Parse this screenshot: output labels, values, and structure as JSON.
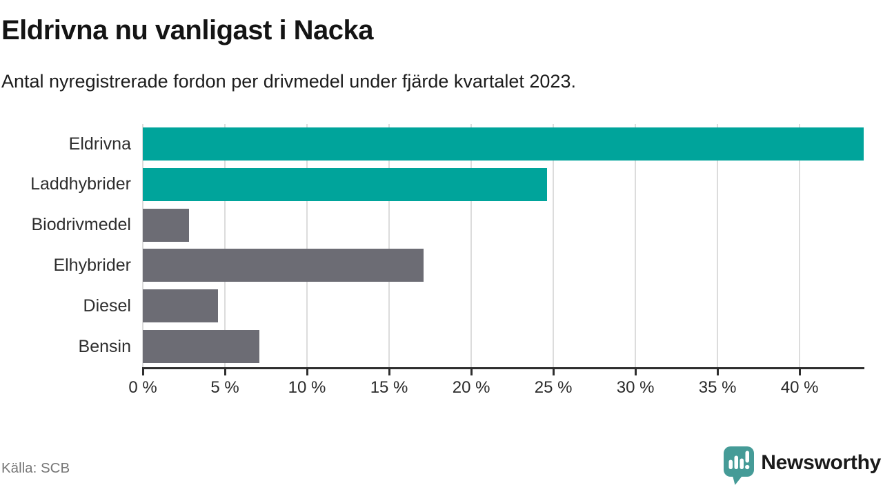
{
  "header": {
    "title": "Eldrivna nu vanligast i Nacka",
    "subtitle": "Antal nyregistrerade fordon per drivmedel under fjärde kvartalet 2023."
  },
  "chart_data": {
    "type": "bar",
    "orientation": "horizontal",
    "title": "Eldrivna nu vanligast i Nacka",
    "xlabel": "",
    "ylabel": "",
    "unit": "%",
    "categories": [
      "Eldrivna",
      "Laddhybrider",
      "Biodrivmedel",
      "Elhybrider",
      "Diesel",
      "Bensin"
    ],
    "values": [
      43.9,
      24.6,
      2.8,
      17.1,
      4.6,
      7.1
    ],
    "bar_colors": [
      "#00A49B",
      "#00A49B",
      "#6C6C74",
      "#6C6C74",
      "#6C6C74",
      "#6C6C74"
    ],
    "highlight_color": "#00A49B",
    "default_color": "#6C6C74",
    "xlim": [
      0,
      43.9
    ],
    "ticks": [
      0,
      5,
      10,
      15,
      20,
      25,
      30,
      35,
      40
    ],
    "tick_labels": [
      "0 %",
      "5 %",
      "10 %",
      "15 %",
      "20 %",
      "25 %",
      "30 %",
      "35 %",
      "40 %"
    ],
    "grid": true,
    "legend": false
  },
  "footer": {
    "source": "Källa: SCB",
    "brand": "Newsworthy",
    "brand_color": "#3F9B97"
  }
}
